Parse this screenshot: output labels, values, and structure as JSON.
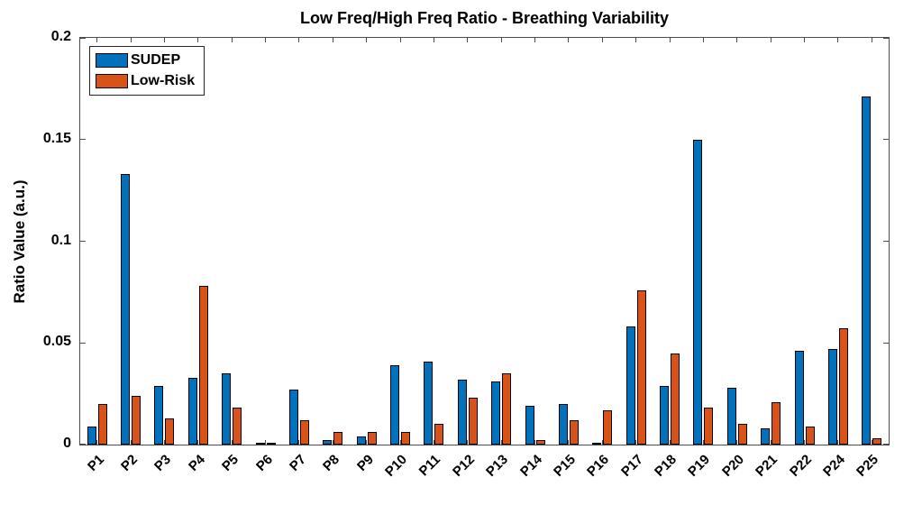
{
  "chart_data": {
    "type": "bar",
    "title": "Low Freq/High Freq Ratio - Breathing Variability",
    "xlabel": "",
    "ylabel": "Ratio Value (a.u.)",
    "categories": [
      "P1",
      "P2",
      "P3",
      "P4",
      "P5",
      "P6",
      "P7",
      "P8",
      "P9",
      "P10",
      "P11",
      "P12",
      "P13",
      "P14",
      "P15",
      "P16",
      "P17",
      "P18",
      "P19",
      "P20",
      "P21",
      "P22",
      "P24",
      "P25"
    ],
    "series": [
      {
        "name": "SUDEP",
        "color": "#0072BD",
        "values": [
          0.009,
          0.133,
          0.029,
          0.033,
          0.035,
          0.001,
          0.027,
          0.002,
          0.004,
          0.039,
          0.041,
          0.032,
          0.031,
          0.019,
          0.02,
          0.001,
          0.058,
          0.029,
          0.15,
          0.028,
          0.008,
          0.046,
          0.047,
          0.171
        ]
      },
      {
        "name": "Low-Risk",
        "color": "#D95319",
        "values": [
          0.02,
          0.024,
          0.013,
          0.078,
          0.018,
          0.001,
          0.012,
          0.006,
          0.006,
          0.006,
          0.01,
          0.023,
          0.035,
          0.002,
          0.012,
          0.017,
          0.076,
          0.045,
          0.018,
          0.01,
          0.021,
          0.009,
          0.057,
          0.003
        ]
      }
    ],
    "ylim": [
      0,
      0.2
    ],
    "yticks": [
      0,
      0.05,
      0.1,
      0.15,
      0.2
    ],
    "ytick_labels": [
      "0",
      "0.05",
      "0.1",
      "0.15",
      "0.2"
    ],
    "grid": false,
    "legend_position": "top-left",
    "bar_edge_color": "#000000",
    "axis_color": "#4d4d4d"
  }
}
